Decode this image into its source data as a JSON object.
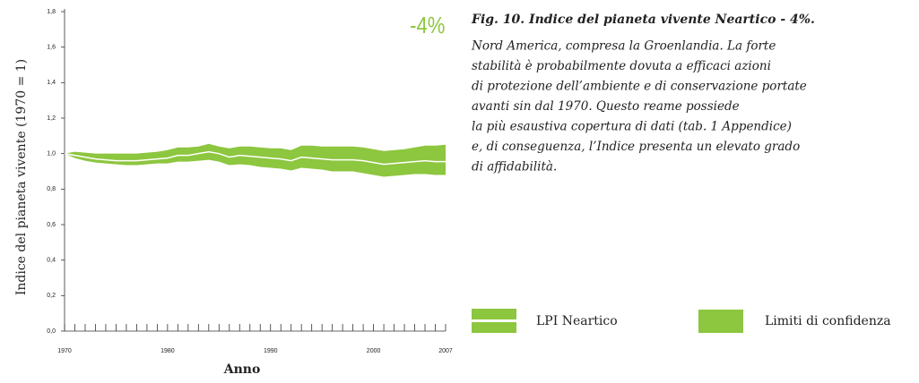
{
  "chart_data": {
    "type": "band-line",
    "title": "Fig. 10. Indice del pianeta vivente Neartico - 4%.",
    "caption": [
      "Nord America, compresa la Groenlandia. La forte",
      "stabilità è probabilmente dovuta a efficaci azioni",
      "di protezione dell’ambiente e di conservazione portate",
      "avanti sin dal 1970. Questo reame possiede",
      "la più esaustiva copertura di dati (tab. 1 Appendice)",
      "e, di conseguenza, l’Indice presenta un elevato grado",
      "di affidabilità."
    ],
    "annotation": "-4%",
    "xlabel": "Anno",
    "ylabel": "Indice del pianeta vivente (1970 = 1)",
    "x": [
      1970,
      1971,
      1972,
      1973,
      1974,
      1975,
      1976,
      1977,
      1978,
      1979,
      1980,
      1981,
      1982,
      1983,
      1984,
      1985,
      1986,
      1987,
      1988,
      1989,
      1990,
      1991,
      1992,
      1993,
      1994,
      1995,
      1996,
      1997,
      1998,
      1999,
      2000,
      2001,
      2002,
      2003,
      2004,
      2005,
      2006,
      2007
    ],
    "series": [
      {
        "name": "LPI Neartico",
        "color": "#ffffff",
        "values": [
          1.0,
          0.99,
          0.98,
          0.97,
          0.965,
          0.96,
          0.96,
          0.96,
          0.965,
          0.97,
          0.975,
          0.99,
          0.99,
          1.0,
          1.01,
          1.0,
          0.98,
          0.99,
          0.985,
          0.98,
          0.975,
          0.97,
          0.96,
          0.98,
          0.975,
          0.97,
          0.965,
          0.965,
          0.965,
          0.96,
          0.95,
          0.94,
          0.945,
          0.95,
          0.955,
          0.96,
          0.955,
          0.955
        ]
      },
      {
        "name": "Limiti di confidenza",
        "color": "#8dc63f",
        "upper": [
          1.0,
          1.01,
          1.005,
          1.0,
          1.0,
          1.0,
          1.0,
          1.0,
          1.005,
          1.01,
          1.02,
          1.035,
          1.035,
          1.04,
          1.055,
          1.04,
          1.03,
          1.04,
          1.04,
          1.035,
          1.03,
          1.03,
          1.02,
          1.045,
          1.045,
          1.04,
          1.04,
          1.04,
          1.04,
          1.035,
          1.025,
          1.015,
          1.02,
          1.025,
          1.035,
          1.045,
          1.045,
          1.05
        ],
        "lower": [
          1.0,
          0.975,
          0.96,
          0.95,
          0.945,
          0.94,
          0.935,
          0.935,
          0.94,
          0.945,
          0.945,
          0.955,
          0.955,
          0.96,
          0.965,
          0.955,
          0.935,
          0.94,
          0.935,
          0.925,
          0.92,
          0.915,
          0.905,
          0.92,
          0.915,
          0.91,
          0.9,
          0.9,
          0.9,
          0.89,
          0.88,
          0.87,
          0.875,
          0.88,
          0.885,
          0.885,
          0.88,
          0.88
        ]
      }
    ],
    "xlim": [
      1970,
      2007
    ],
    "xticks": [
      1970,
      1980,
      1990,
      2000,
      2007
    ],
    "ylim": [
      0,
      1.8
    ],
    "yticks": [
      {
        "value": 0,
        "label": "0,0"
      },
      {
        "value": 0.2,
        "label": "0,2"
      },
      {
        "value": 0.4,
        "label": "0,4"
      },
      {
        "value": 0.6,
        "label": "0,6"
      },
      {
        "value": 0.8,
        "label": "0,8"
      },
      {
        "value": 1.0,
        "label": "1,0"
      },
      {
        "value": 1.2,
        "label": "1,2"
      },
      {
        "value": 1.4,
        "label": "1,4"
      },
      {
        "value": 1.6,
        "label": "1,6"
      },
      {
        "value": 1.8,
        "label": "1,8"
      }
    ]
  }
}
